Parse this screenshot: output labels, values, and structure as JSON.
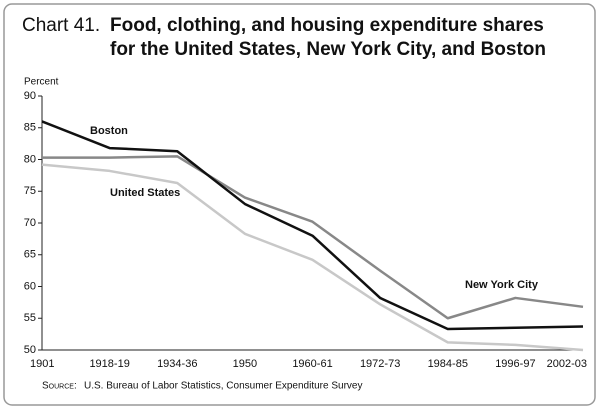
{
  "chart_data": {
    "type": "line",
    "title_prefix": "Chart 41.",
    "title": [
      "Food, clothing, and housing expenditure shares",
      "for the United States, New York City, and Boston"
    ],
    "y_label": "Percent",
    "source_label": "Source:",
    "source": "U.S. Bureau of Labor Statistics, Consumer Expenditure Survey",
    "categories": [
      "1901",
      "1918-19",
      "1934-36",
      "1950",
      "1960-61",
      "1972-73",
      "1984-85",
      "1996-97",
      "2002-03"
    ],
    "series": [
      {
        "name": "Boston",
        "color": "#111111",
        "values": [
          86,
          81.8,
          81.3,
          73,
          68,
          58.2,
          53.3,
          53.5,
          53.7
        ]
      },
      {
        "name": "United States",
        "color": "#c8c8c8",
        "values": [
          79.2,
          78.2,
          76.3,
          68.3,
          64.2,
          57.2,
          51.2,
          50.8,
          50.0
        ]
      },
      {
        "name": "New York City",
        "color": "#888888",
        "values": [
          80.3,
          80.3,
          80.5,
          74,
          70.2,
          62.5,
          55,
          58.2,
          56.8
        ]
      }
    ],
    "ylim": [
      50,
      90
    ],
    "yticks": [
      50,
      55,
      60,
      65,
      70,
      75,
      80,
      85,
      90
    ],
    "grid": false
  }
}
